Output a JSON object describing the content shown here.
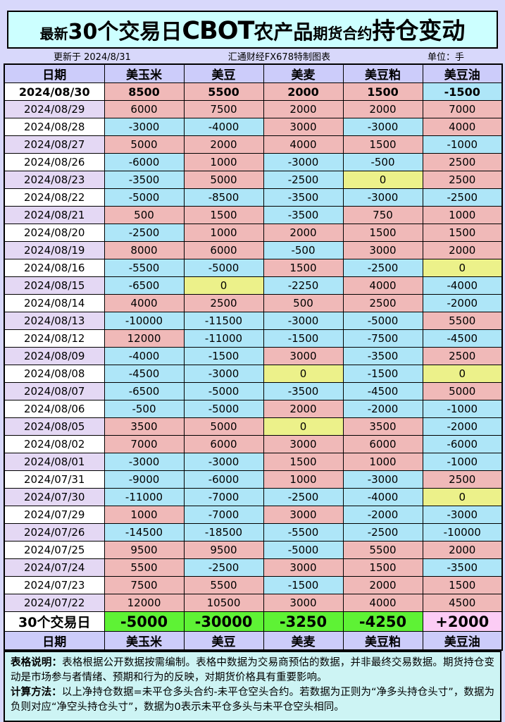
{
  "title": {
    "part1": "最新",
    "part2": "30个交易日",
    "part3": "CBOT",
    "part4": "农产品",
    "part5": "期货合约",
    "part6": "持仓变动"
  },
  "subheader": {
    "updated": "更新于 2024/8/31",
    "source": "汇通财经FX678特制图表",
    "unit": "单位：手"
  },
  "chart_data": {
    "type": "table",
    "title": "最新30个交易日CBOT农产品期货合约持仓变动",
    "unit": "手",
    "columns": [
      "日期",
      "美玉米",
      "美豆",
      "美麦",
      "美豆粕",
      "美豆油"
    ],
    "rows": [
      [
        "2024/08/30",
        8500,
        5500,
        2000,
        1500,
        -1500
      ],
      [
        "2024/08/29",
        6000,
        7500,
        2000,
        2000,
        7000
      ],
      [
        "2024/08/28",
        -3000,
        -4000,
        3000,
        -3000,
        4000
      ],
      [
        "2024/08/27",
        5000,
        2000,
        4000,
        1500,
        -1000
      ],
      [
        "2024/08/26",
        -6000,
        1000,
        -3000,
        -500,
        2500
      ],
      [
        "2024/08/23",
        -3500,
        5000,
        -2500,
        0,
        2500
      ],
      [
        "2024/08/22",
        -5000,
        -8500,
        -3500,
        -3000,
        -2500
      ],
      [
        "2024/08/21",
        500,
        1500,
        -3500,
        750,
        1000
      ],
      [
        "2024/08/20",
        -2500,
        1000,
        2000,
        1500,
        1500
      ],
      [
        "2024/08/19",
        8000,
        6000,
        -500,
        3000,
        2000
      ],
      [
        "2024/08/16",
        -5500,
        -5000,
        1500,
        -2500,
        0
      ],
      [
        "2024/08/15",
        -6500,
        0,
        -2250,
        4000,
        -4000
      ],
      [
        "2024/08/14",
        4000,
        2500,
        500,
        2500,
        -2000
      ],
      [
        "2024/08/13",
        -10000,
        -11500,
        -3000,
        -5000,
        5500
      ],
      [
        "2024/08/12",
        12000,
        -11000,
        -1500,
        -7500,
        -4500
      ],
      [
        "2024/08/09",
        -4000,
        -1500,
        3000,
        -3500,
        2500
      ],
      [
        "2024/08/08",
        -4500,
        -3000,
        0,
        -1500,
        0
      ],
      [
        "2024/08/07",
        -6500,
        -5000,
        -3500,
        -4500,
        5000
      ],
      [
        "2024/08/06",
        -500,
        -5000,
        2000,
        -2000,
        -1000
      ],
      [
        "2024/08/05",
        3500,
        5000,
        0,
        3500,
        -2000
      ],
      [
        "2024/08/02",
        7000,
        6000,
        3000,
        6000,
        -6000
      ],
      [
        "2024/08/01",
        -3000,
        -3000,
        1500,
        1000,
        -1000
      ],
      [
        "2024/07/31",
        -9000,
        -6000,
        1000,
        -3000,
        2500
      ],
      [
        "2024/07/30",
        -11000,
        -7000,
        -2500,
        -4000,
        0
      ],
      [
        "2024/07/29",
        1000,
        -7000,
        3000,
        -2000,
        -3000
      ],
      [
        "2024/07/26",
        -14500,
        -18500,
        -5500,
        -2500,
        -10000
      ],
      [
        "2024/07/25",
        9500,
        9500,
        -5000,
        5500,
        2000
      ],
      [
        "2024/07/24",
        5500,
        -2500,
        3000,
        1500,
        -3500
      ],
      [
        "2024/07/23",
        7500,
        5500,
        -1500,
        2000,
        1500
      ],
      [
        "2024/07/22",
        12000,
        10500,
        3000,
        4000,
        4500
      ]
    ],
    "totals_label": "30个交易日",
    "totals": [
      "-5000",
      "-30000",
      "-3250",
      "-4250",
      "+2000"
    ]
  },
  "notes": {
    "line1_label": "表格说明：",
    "line1_text": "表格根据公开数据按需编制。表格中数据为交易商预估的数据，并非最终交易数据。期货持仓变动是市场参与者情绪、预期和行为的反映，对期货价格具有重要影响。",
    "line2_label": "计算方法：",
    "line2_text": "以上净持仓数据=未平仓多头合约-未平仓空头合约。若数据为正则为“净多头持仓头寸”，数据为负则对应“净空头持仓头寸”，数据为0表示未平仓多头与未平仓空头相同。"
  },
  "colors": {
    "page_bg": "#d8d8fb",
    "title_bg": "#ccffff",
    "header_bg": "#ccccfa",
    "positive_bg": "#f0b9b8",
    "negative_bg": "#aee6f8",
    "zero_bg": "#ecf18a",
    "date_alt_bg": "#e4d8f4",
    "total_negative_bg": "#5ef235",
    "total_positive_bg": "#fcccf5",
    "notes_bg": "#cdf4f4"
  }
}
